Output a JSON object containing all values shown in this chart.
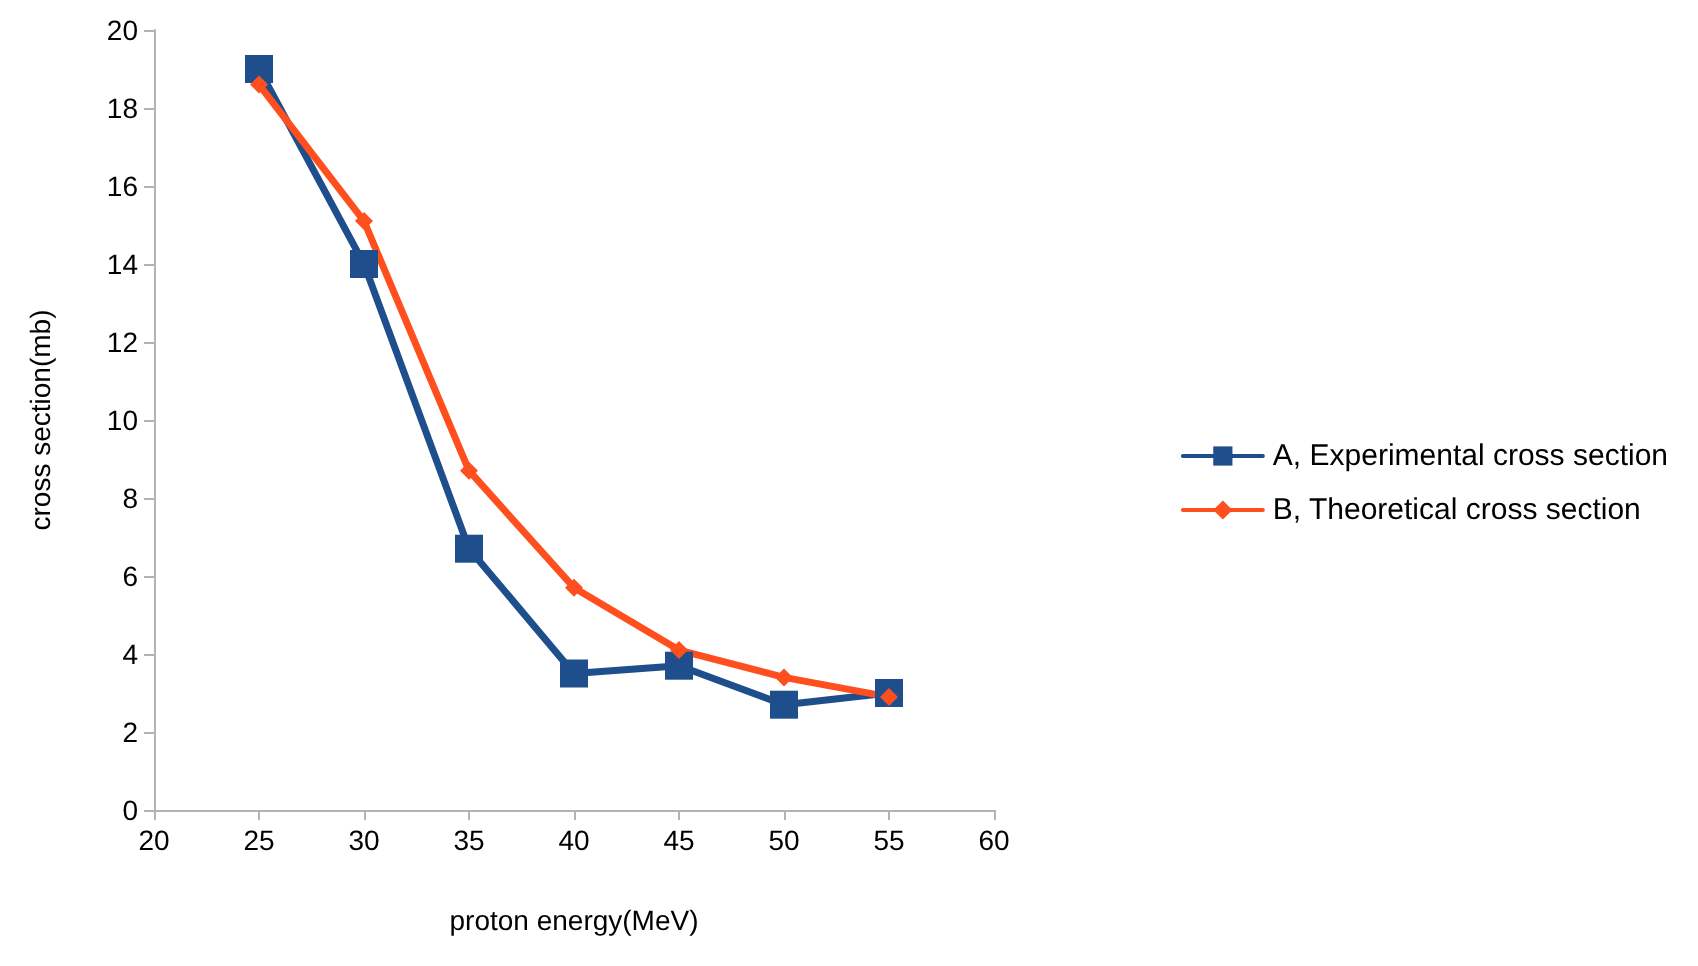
{
  "chart_data": {
    "type": "line",
    "xlabel": "proton energy(MeV)",
    "ylabel": "cross section(mb)",
    "x": [
      25,
      30,
      35,
      40,
      45,
      50,
      55
    ],
    "series": [
      {
        "name": "A, Experimental cross section",
        "color": "#1f4e8c",
        "marker": "square",
        "values": [
          19,
          14,
          6.7,
          3.5,
          3.7,
          2.7,
          3.0
        ]
      },
      {
        "name": "B, Theoretical cross section",
        "color": "#ff4f1f",
        "marker": "diamond",
        "values": [
          18.6,
          15.1,
          8.7,
          5.7,
          4.1,
          3.4,
          2.9
        ]
      }
    ],
    "xlim": [
      20,
      60
    ],
    "xticks": [
      20,
      25,
      30,
      35,
      40,
      45,
      50,
      55,
      60
    ],
    "ylim": [
      0,
      20
    ],
    "yticks": [
      0,
      2,
      4,
      6,
      8,
      10,
      12,
      14,
      16,
      18,
      20
    ],
    "grid": false,
    "legend": "right",
    "line_style": "solid"
  }
}
